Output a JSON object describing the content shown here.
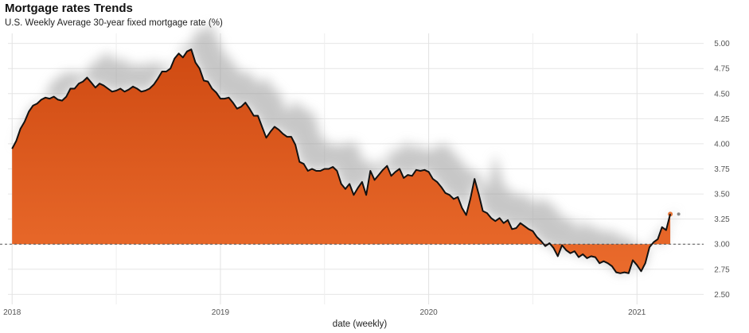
{
  "chart_data": {
    "type": "area",
    "title": "Mortgage rates Trends",
    "subtitle": "U.S. Weekly Average 30-year fixed mortgage rate (%)",
    "xlabel": "date (weekly)",
    "ylabel": "",
    "ylim": [
      2.4,
      5.1
    ],
    "yticks": [
      2.5,
      2.75,
      3.0,
      3.25,
      3.5,
      3.75,
      4.0,
      4.25,
      4.5,
      4.75,
      5.0
    ],
    "ytick_labels": [
      "2.50",
      "2.75",
      "3.00",
      "3.25",
      "3.50",
      "3.75",
      "4.00",
      "4.25",
      "4.50",
      "4.75",
      "5.00"
    ],
    "xticks": [
      2018,
      2019,
      2020,
      2021
    ],
    "xtick_labels": [
      "2018",
      "2019",
      "2020",
      "2021"
    ],
    "xlim": [
      2017.98,
      2021.32
    ],
    "reference_line": 3.0,
    "projection_end_value": 3.3,
    "grid": true,
    "legend": "none",
    "colors": {
      "fill": "#d9531e",
      "line": "#111111",
      "shadow": "#9a9a9a",
      "reference": "#555555"
    },
    "series": [
      {
        "x": [
          2018.0,
          2018.02,
          2018.04,
          2018.06,
          2018.08,
          2018.1,
          2018.12,
          2018.14,
          2018.16,
          2018.18,
          2018.2,
          2018.22,
          2018.24,
          2018.26,
          2018.28,
          2018.3,
          2018.32,
          2018.34,
          2018.36,
          2018.38,
          2018.4,
          2018.42,
          2018.44,
          2018.46,
          2018.48,
          2018.5,
          2018.52,
          2018.54,
          2018.56,
          2018.58,
          2018.6,
          2018.62,
          2018.64,
          2018.66,
          2018.68,
          2018.7,
          2018.72,
          2018.74,
          2018.76,
          2018.78,
          2018.8,
          2018.82,
          2018.84,
          2018.86,
          2018.88,
          2018.9,
          2018.92,
          2018.94,
          2018.96,
          2018.98,
          2019.0,
          2019.02,
          2019.04,
          2019.06,
          2019.08,
          2019.1,
          2019.12,
          2019.14,
          2019.16,
          2019.18,
          2019.2,
          2019.22,
          2019.24,
          2019.26,
          2019.28,
          2019.3,
          2019.32,
          2019.34,
          2019.36,
          2019.38,
          2019.4,
          2019.42,
          2019.44,
          2019.46,
          2019.48,
          2019.5,
          2019.52,
          2019.54,
          2019.56,
          2019.58,
          2019.6,
          2019.62,
          2019.64,
          2019.66,
          2019.68,
          2019.7,
          2019.72,
          2019.74,
          2019.76,
          2019.78,
          2019.8,
          2019.82,
          2019.84,
          2019.86,
          2019.88,
          2019.9,
          2019.92,
          2019.94,
          2019.96,
          2019.98,
          2020.0,
          2020.02,
          2020.04,
          2020.06,
          2020.08,
          2020.1,
          2020.12,
          2020.14,
          2020.16,
          2020.18,
          2020.2,
          2020.22,
          2020.24,
          2020.26,
          2020.28,
          2020.3,
          2020.32,
          2020.34,
          2020.36,
          2020.38,
          2020.4,
          2020.42,
          2020.44,
          2020.46,
          2020.48,
          2020.5,
          2020.52,
          2020.54,
          2020.56,
          2020.58,
          2020.6,
          2020.62,
          2020.64,
          2020.66,
          2020.68,
          2020.7,
          2020.72,
          2020.74,
          2020.76,
          2020.78,
          2020.8,
          2020.82,
          2020.84,
          2020.86,
          2020.88,
          2020.9,
          2020.92,
          2020.94,
          2020.96,
          2020.98,
          2021.0,
          2021.02,
          2021.04,
          2021.06,
          2021.08,
          2021.1,
          2021.12,
          2021.14,
          2021.16
        ],
        "values": [
          3.95,
          4.03,
          4.15,
          4.22,
          4.32,
          4.38,
          4.4,
          4.44,
          4.46,
          4.45,
          4.47,
          4.44,
          4.43,
          4.47,
          4.55,
          4.55,
          4.6,
          4.62,
          4.66,
          4.61,
          4.56,
          4.6,
          4.58,
          4.55,
          4.52,
          4.53,
          4.55,
          4.52,
          4.54,
          4.57,
          4.55,
          4.52,
          4.53,
          4.55,
          4.59,
          4.65,
          4.72,
          4.72,
          4.75,
          4.85,
          4.9,
          4.86,
          4.92,
          4.94,
          4.81,
          4.75,
          4.63,
          4.62,
          4.55,
          4.51,
          4.45,
          4.45,
          4.46,
          4.41,
          4.35,
          4.37,
          4.41,
          4.35,
          4.28,
          4.28,
          4.17,
          4.06,
          4.12,
          4.17,
          4.14,
          4.1,
          4.07,
          4.07,
          3.99,
          3.82,
          3.8,
          3.73,
          3.75,
          3.73,
          3.73,
          3.75,
          3.75,
          3.77,
          3.73,
          3.6,
          3.55,
          3.6,
          3.49,
          3.56,
          3.62,
          3.49,
          3.73,
          3.64,
          3.69,
          3.74,
          3.78,
          3.68,
          3.72,
          3.75,
          3.66,
          3.69,
          3.68,
          3.74,
          3.73,
          3.74,
          3.72,
          3.65,
          3.62,
          3.57,
          3.51,
          3.49,
          3.45,
          3.47,
          3.36,
          3.29,
          3.45,
          3.65,
          3.5,
          3.33,
          3.31,
          3.26,
          3.23,
          3.26,
          3.21,
          3.24,
          3.15,
          3.16,
          3.21,
          3.18,
          3.15,
          3.13,
          3.07,
          3.03,
          2.98,
          3.01,
          2.96,
          2.88,
          2.99,
          2.94,
          2.91,
          2.93,
          2.87,
          2.9,
          2.86,
          2.88,
          2.87,
          2.81,
          2.83,
          2.81,
          2.78,
          2.72,
          2.71,
          2.72,
          2.71,
          2.84,
          2.79,
          2.73,
          2.81,
          2.97,
          3.02,
          3.05,
          3.17,
          3.14,
          3.3
        ]
      }
    ]
  }
}
